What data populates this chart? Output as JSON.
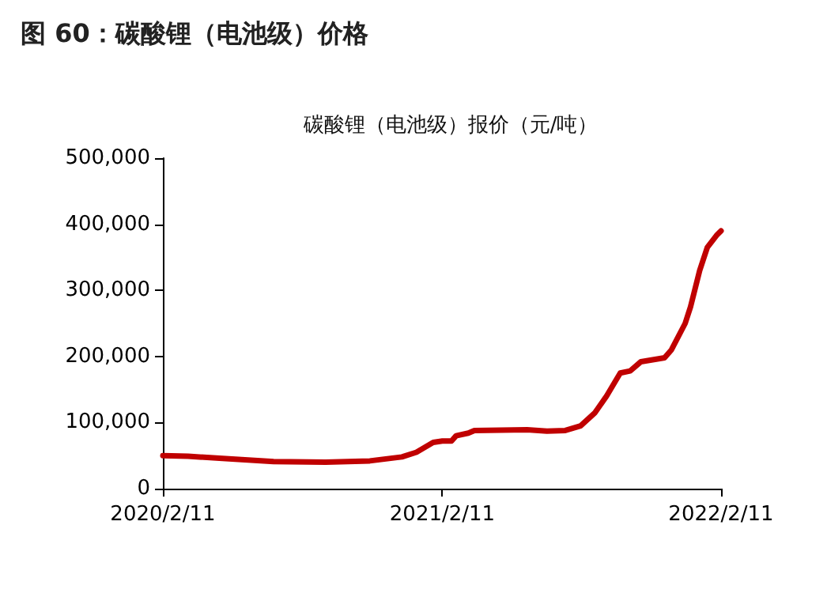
{
  "chart_data": {
    "type": "line",
    "title": "图 60：碳酸锂（电池级）价格",
    "subtitle": "碳酸锂（电池级）报价（元/吨）",
    "x": [
      "2020-02-11",
      "2020-03-15",
      "2020-04-25",
      "2020-07-05",
      "2020-09-11",
      "2020-11-08",
      "2020-12-20",
      "2021-01-08",
      "2021-01-30",
      "2021-02-11",
      "2021-02-23",
      "2021-03-01",
      "2021-03-17",
      "2021-03-25",
      "2021-06-02",
      "2021-06-28",
      "2021-07-22",
      "2021-08-11",
      "2021-08-30",
      "2021-09-14",
      "2021-10-02",
      "2021-10-15",
      "2021-10-29",
      "2021-11-29",
      "2021-12-08",
      "2021-12-26",
      "2022-01-02",
      "2022-01-14",
      "2022-01-24",
      "2022-02-05",
      "2022-02-11"
    ],
    "series": [
      {
        "color": "#c00000",
        "values": [
          50000,
          49000,
          46000,
          41000,
          40000,
          42000,
          48000,
          55000,
          70000,
          72000,
          72000,
          80000,
          84000,
          88000,
          89000,
          87000,
          88000,
          95000,
          115000,
          140000,
          175000,
          178000,
          192000,
          198000,
          210000,
          250000,
          275000,
          330000,
          365000,
          383000,
          390000
        ]
      }
    ],
    "xlim": [
      "2020-02-11",
      "2022-02-11"
    ],
    "xticks": [
      {
        "value": "2020-02-11",
        "label": "2020/2/11"
      },
      {
        "value": "2021-02-11",
        "label": "2021/2/11"
      },
      {
        "value": "2022-02-11",
        "label": "2022/2/11"
      }
    ],
    "ylim": [
      0,
      500000
    ],
    "yticks": [
      0,
      {
        "value": 100000,
        "label": "100,000"
      },
      {
        "value": 200000,
        "label": "200,000"
      },
      {
        "value": 300000,
        "label": "300,000"
      },
      {
        "value": 400000,
        "label": "400,000"
      },
      {
        "value": 500000,
        "label": "500,000"
      }
    ],
    "grid": false,
    "marker": "none",
    "line_style": "solid"
  }
}
